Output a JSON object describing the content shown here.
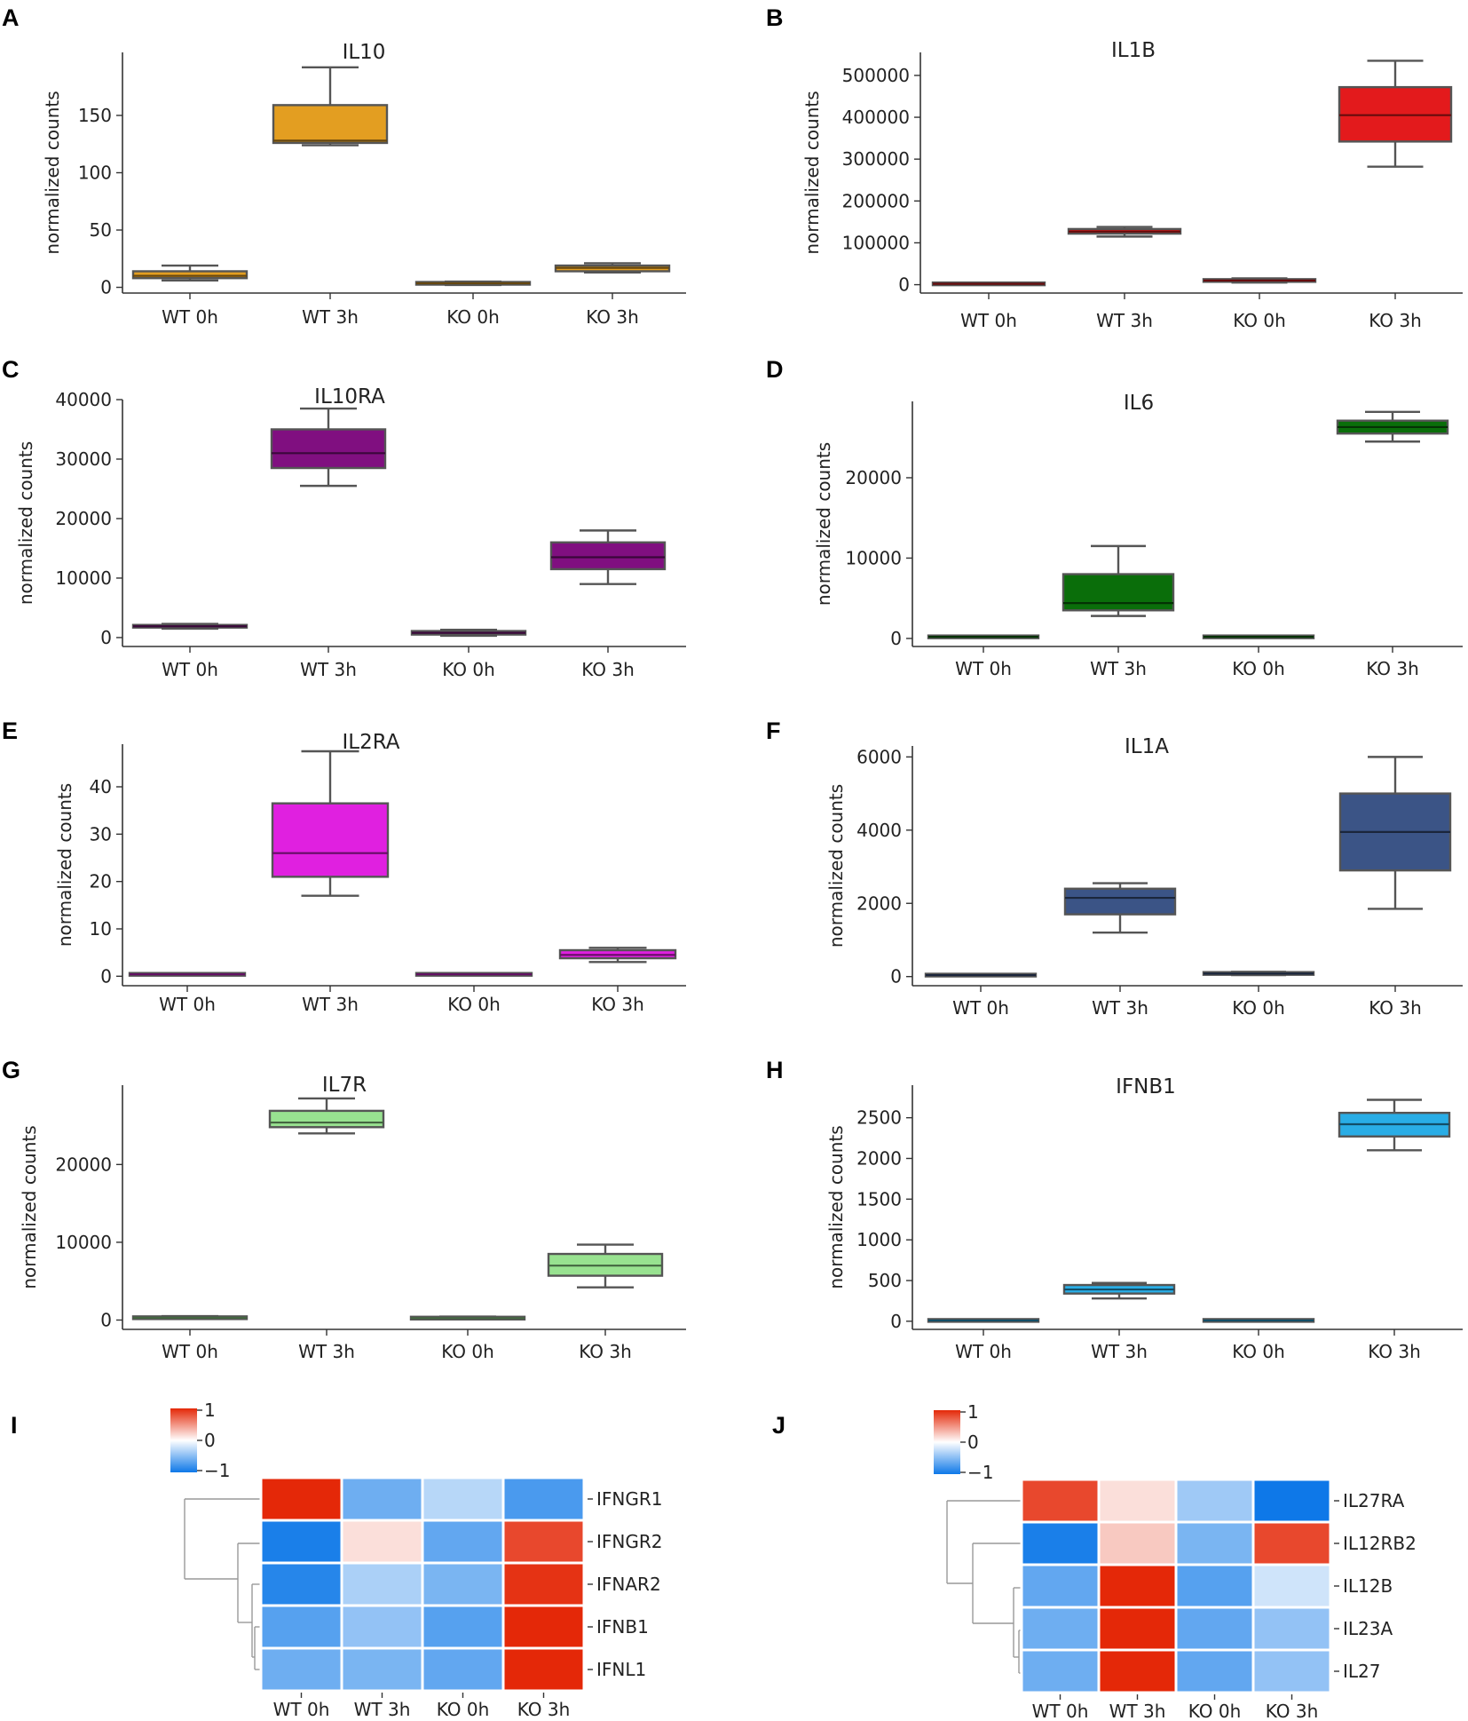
{
  "chart_data": [
    {
      "panel": "A",
      "type": "box",
      "title": "IL10",
      "ylabel": "normalized counts",
      "color": "#e39e21",
      "ylim": [
        -5,
        205
      ],
      "yticks": [
        0,
        50,
        100,
        150
      ],
      "yticklabels": [
        "0",
        "50",
        "100",
        "150"
      ],
      "categories": [
        "WT 0h",
        "WT 3h",
        "KO 0h",
        "KO 3h"
      ],
      "boxes": [
        {
          "min": 6,
          "q1": 8,
          "median": 10,
          "q3": 14,
          "max": 19
        },
        {
          "min": 124,
          "q1": 126,
          "median": 128,
          "q3": 159,
          "max": 192
        },
        {
          "min": 2,
          "q1": 3,
          "median": 3.5,
          "q3": 4,
          "max": 5
        },
        {
          "min": 13,
          "q1": 14,
          "median": 17,
          "q3": 19,
          "max": 21
        }
      ]
    },
    {
      "panel": "B",
      "type": "box",
      "title": "IL1B",
      "ylabel": "normalized counts",
      "color": "#e31a1c",
      "ylim": [
        -20000,
        555000
      ],
      "yticks": [
        0,
        100000,
        200000,
        300000,
        400000,
        500000
      ],
      "yticklabels": [
        "0",
        "100000",
        "200000",
        "300000",
        "400000",
        "500000"
      ],
      "categories": [
        "WT 0h",
        "WT 3h",
        "KO 0h",
        "KO 3h"
      ],
      "boxes": [
        {
          "min": 1000,
          "q1": 1500,
          "median": 2000,
          "q3": 2500,
          "max": 3000
        },
        {
          "min": 115000,
          "q1": 122000,
          "median": 127000,
          "q3": 133000,
          "max": 138000
        },
        {
          "min": 5000,
          "q1": 7000,
          "median": 10000,
          "q3": 13000,
          "max": 15000
        },
        {
          "min": 282000,
          "q1": 342000,
          "median": 405000,
          "q3": 472000,
          "max": 535000
        }
      ]
    },
    {
      "panel": "C",
      "type": "box",
      "title": "IL10RA",
      "ylabel": "normalized counts",
      "color": "#800f80",
      "ylim": [
        -1500,
        40000
      ],
      "yticks": [
        0,
        10000,
        20000,
        30000,
        40000
      ],
      "yticklabels": [
        "0",
        "10000",
        "20000",
        "30000",
        "40000"
      ],
      "categories": [
        "WT 0h",
        "WT 3h",
        "KO 0h",
        "KO 3h"
      ],
      "boxes": [
        {
          "min": 1500,
          "q1": 1700,
          "median": 1900,
          "q3": 2100,
          "max": 2300
        },
        {
          "min": 25500,
          "q1": 28500,
          "median": 31000,
          "q3": 35000,
          "max": 38500
        },
        {
          "min": 300,
          "q1": 500,
          "median": 800,
          "q3": 1100,
          "max": 1300
        },
        {
          "min": 9000,
          "q1": 11500,
          "median": 13500,
          "q3": 16000,
          "max": 18000
        }
      ]
    },
    {
      "panel": "D",
      "type": "box",
      "title": "IL6",
      "ylabel": "normalized counts",
      "color": "#0a6e0a",
      "ylim": [
        -1000,
        29500
      ],
      "yticks": [
        0,
        10000,
        20000
      ],
      "yticklabels": [
        "0",
        "10000",
        "20000"
      ],
      "categories": [
        "WT 0h",
        "WT 3h",
        "KO 0h",
        "KO 3h"
      ],
      "boxes": [
        {
          "min": 100,
          "q1": 150,
          "median": 200,
          "q3": 250,
          "max": 300
        },
        {
          "min": 2800,
          "q1": 3500,
          "median": 4400,
          "q3": 8000,
          "max": 11500
        },
        {
          "min": 100,
          "q1": 150,
          "median": 200,
          "q3": 250,
          "max": 300
        },
        {
          "min": 24500,
          "q1": 25500,
          "median": 26300,
          "q3": 27100,
          "max": 28200
        }
      ]
    },
    {
      "panel": "E",
      "type": "box",
      "title": "IL2RA",
      "ylabel": "normalized counts",
      "color": "#e020e0",
      "ylim": [
        -2,
        49
      ],
      "yticks": [
        0,
        10,
        20,
        30,
        40
      ],
      "yticklabels": [
        "0",
        "10",
        "20",
        "30",
        "40"
      ],
      "categories": [
        "WT 0h",
        "WT 3h",
        "KO 0h",
        "KO 3h"
      ],
      "boxes": [
        {
          "min": 0.2,
          "q1": 0.3,
          "median": 0.4,
          "q3": 0.5,
          "max": 0.6
        },
        {
          "min": 17,
          "q1": 21,
          "median": 26,
          "q3": 36.5,
          "max": 47.5
        },
        {
          "min": 0.2,
          "q1": 0.3,
          "median": 0.4,
          "q3": 0.5,
          "max": 0.6
        },
        {
          "min": 3,
          "q1": 3.8,
          "median": 4.5,
          "q3": 5.5,
          "max": 6
        }
      ]
    },
    {
      "panel": "F",
      "type": "box",
      "title": "IL1A",
      "ylabel": "normalized counts",
      "color": "#3b5486",
      "ylim": [
        -250,
        6300
      ],
      "yticks": [
        0,
        2000,
        4000,
        6000
      ],
      "yticklabels": [
        "0",
        "2000",
        "4000",
        "6000"
      ],
      "categories": [
        "WT 0h",
        "WT 3h",
        "KO 0h",
        "KO 3h"
      ],
      "boxes": [
        {
          "min": 20,
          "q1": 30,
          "median": 40,
          "q3": 50,
          "max": 60
        },
        {
          "min": 1200,
          "q1": 1700,
          "median": 2150,
          "q3": 2400,
          "max": 2550
        },
        {
          "min": 40,
          "q1": 60,
          "median": 80,
          "q3": 110,
          "max": 130
        },
        {
          "min": 1850,
          "q1": 2900,
          "median": 3950,
          "q3": 5000,
          "max": 6000
        }
      ]
    },
    {
      "panel": "G",
      "type": "box",
      "title": "IL7R",
      "ylabel": "normalized counts",
      "color": "#98e290",
      "ylim": [
        -1200,
        30200
      ],
      "yticks": [
        0,
        10000,
        20000
      ],
      "yticklabels": [
        "0",
        "10000",
        "20000"
      ],
      "categories": [
        "WT 0h",
        "WT 3h",
        "KO 0h",
        "KO 3h"
      ],
      "boxes": [
        {
          "min": 200,
          "q1": 250,
          "median": 300,
          "q3": 350,
          "max": 500
        },
        {
          "min": 24000,
          "q1": 24800,
          "median": 25400,
          "q3": 26900,
          "max": 28500
        },
        {
          "min": 150,
          "q1": 200,
          "median": 250,
          "q3": 300,
          "max": 450
        },
        {
          "min": 4200,
          "q1": 5700,
          "median": 7000,
          "q3": 8500,
          "max": 9700
        }
      ]
    },
    {
      "panel": "H",
      "type": "box",
      "title": "IFNB1",
      "ylabel": "normalized counts",
      "color": "#29ade6",
      "ylim": [
        -100,
        2900
      ],
      "yticks": [
        0,
        500,
        1000,
        1500,
        2000,
        2500
      ],
      "yticklabels": [
        "0",
        "500",
        "1000",
        "1500",
        "2000",
        "2500"
      ],
      "categories": [
        "WT 0h",
        "WT 3h",
        "KO 0h",
        "KO 3h"
      ],
      "boxes": [
        {
          "min": 5,
          "q1": 8,
          "median": 10,
          "q3": 12,
          "max": 15
        },
        {
          "min": 280,
          "q1": 340,
          "median": 390,
          "q3": 445,
          "max": 470
        },
        {
          "min": 5,
          "q1": 8,
          "median": 10,
          "q3": 12,
          "max": 15
        },
        {
          "min": 2100,
          "q1": 2270,
          "median": 2420,
          "q3": 2560,
          "max": 2720
        }
      ]
    },
    {
      "panel": "I",
      "type": "heatmap",
      "legend_labels": [
        "1",
        "0",
        "−1"
      ],
      "columns": [
        "WT 0h",
        "WT 3h",
        "KO 0h",
        "KO 3h"
      ],
      "rows": [
        "IFNGR1",
        "IFNGR2",
        "IFNAR2",
        "IFNB1",
        "IFNL1"
      ],
      "values": [
        [
          1.0,
          -0.6,
          -0.3,
          -0.75
        ],
        [
          -0.95,
          0.15,
          -0.65,
          0.85
        ],
        [
          -0.9,
          -0.35,
          -0.55,
          0.95
        ],
        [
          -0.7,
          -0.45,
          -0.7,
          1.0
        ],
        [
          -0.6,
          -0.55,
          -0.65,
          1.0
        ]
      ]
    },
    {
      "panel": "J",
      "type": "heatmap",
      "legend_labels": [
        "1",
        "0",
        "−1"
      ],
      "columns": [
        "WT 0h",
        "WT 3h",
        "KO 0h",
        "KO 3h"
      ],
      "rows": [
        "IL27RA",
        "IL12RB2",
        "IL12B",
        "IL23A",
        "IL27"
      ],
      "values": [
        [
          0.85,
          0.15,
          -0.4,
          -1.0
        ],
        [
          -0.95,
          0.25,
          -0.55,
          0.85
        ],
        [
          -0.65,
          1.0,
          -0.7,
          -0.2
        ],
        [
          -0.6,
          1.0,
          -0.65,
          -0.45
        ],
        [
          -0.6,
          1.0,
          -0.65,
          -0.45
        ]
      ]
    }
  ]
}
